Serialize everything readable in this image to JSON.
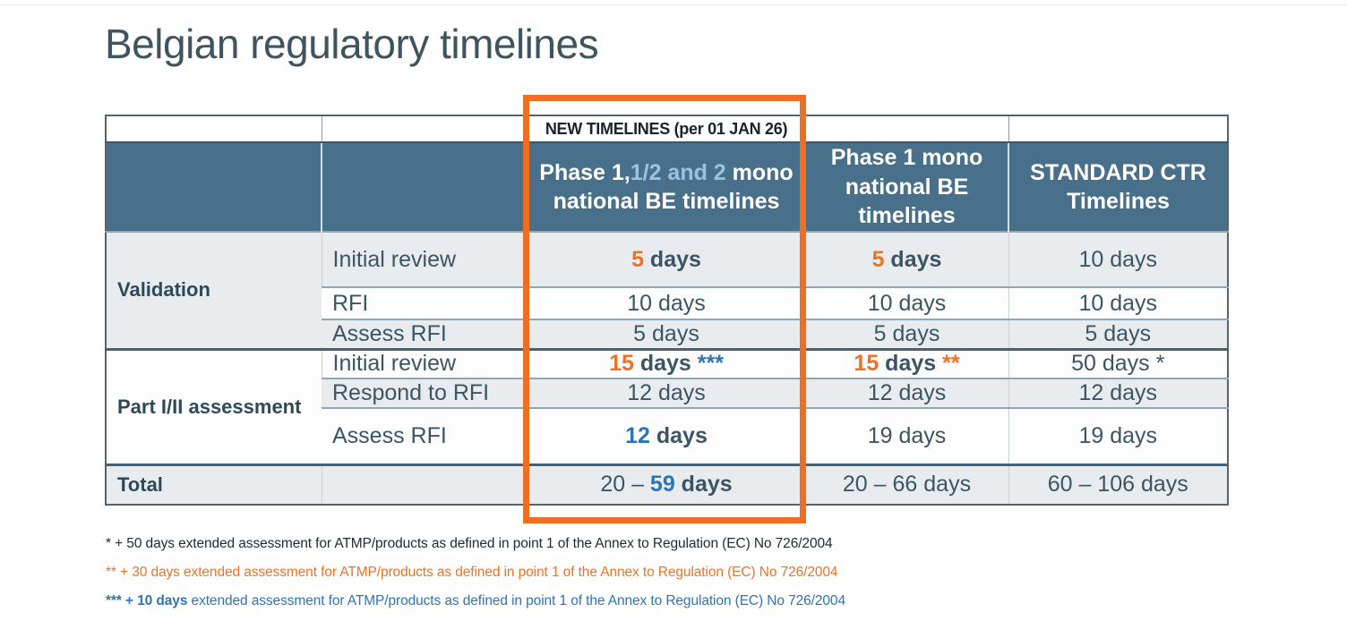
{
  "title": "Belgian regulatory timelines",
  "colors": {
    "orange": "#ED7224",
    "blue": "#2E74B6",
    "dark": "#3C5564",
    "ink": "#1C2A32",
    "lightblue": "#9CC2DD",
    "white": "#FFFFFF",
    "header_bg": "#49708A",
    "alt_row_bg": "#E9ECEF",
    "title_color": "#3E545F",
    "highlight": "#F06E23"
  },
  "table": {
    "banner": "NEW TIMELINES (per 01 JAN 26)",
    "headers": {
      "new_segments": [
        {
          "text": "Phase 1,",
          "color": "white",
          "bold": true
        },
        {
          "text": "1/2 and 2",
          "color": "lightblue",
          "bold": true
        },
        {
          "text": " mono national BE timelines",
          "color": "white",
          "bold": true
        }
      ],
      "phase1_mono": "Phase 1 mono national BE timelines",
      "standard": "STANDARD CTR Timelines"
    },
    "sections": [
      {
        "label": "Validation",
        "rows": [
          {
            "step": "Initial review",
            "new": [
              {
                "text": "5",
                "color": "orange",
                "bold": true
              },
              {
                "text": " days",
                "bold": true
              }
            ],
            "phase1": [
              {
                "text": "5",
                "color": "orange",
                "bold": true
              },
              {
                "text": " days",
                "bold": true
              }
            ],
            "standard": [
              {
                "text": "10 days"
              }
            ]
          },
          {
            "step": "RFI",
            "new": [
              {
                "text": "10 days"
              }
            ],
            "phase1": [
              {
                "text": "10 days"
              }
            ],
            "standard": [
              {
                "text": "10 days"
              }
            ]
          },
          {
            "step": "Assess RFI",
            "new": [
              {
                "text": "5 days"
              }
            ],
            "phase1": [
              {
                "text": "5 days"
              }
            ],
            "standard": [
              {
                "text": "5 days"
              }
            ]
          }
        ]
      },
      {
        "label": "Part I/II assessment",
        "rows": [
          {
            "step": "Initial review",
            "new": [
              {
                "text": "15",
                "color": "orange",
                "bold": true
              },
              {
                "text": " days ",
                "bold": true
              },
              {
                "text": "***",
                "color": "blue",
                "bold": true
              }
            ],
            "phase1": [
              {
                "text": "15",
                "color": "orange",
                "bold": true
              },
              {
                "text": " days ",
                "bold": true
              },
              {
                "text": "**",
                "color": "orange",
                "bold": true
              }
            ],
            "standard": [
              {
                "text": "50 days *"
              }
            ]
          },
          {
            "step": "Respond to RFI",
            "new": [
              {
                "text": "12 days"
              }
            ],
            "phase1": [
              {
                "text": "12 days"
              }
            ],
            "standard": [
              {
                "text": "12 days"
              }
            ]
          },
          {
            "step": "Assess RFI",
            "new": [
              {
                "text": "12",
                "color": "blue",
                "bold": true
              },
              {
                "text": " days",
                "bold": true
              }
            ],
            "phase1": [
              {
                "text": "19 days"
              }
            ],
            "standard": [
              {
                "text": "19 days"
              }
            ]
          }
        ]
      }
    ],
    "total": {
      "label": "Total",
      "new": [
        {
          "text": "20 – "
        },
        {
          "text": "59",
          "color": "blue",
          "bold": true
        },
        {
          "text": " days",
          "bold": true
        }
      ],
      "phase1": [
        {
          "text": "20 – 66 days"
        }
      ],
      "standard": [
        {
          "text": "60 – 106 days"
        }
      ]
    }
  },
  "footnotes": [
    {
      "segments": [
        {
          "text": "* + 50 days extended assessment for ATMP/products as defined in point 1 of the Annex to Regulation (EC) No 726/2004",
          "color": "ink"
        }
      ]
    },
    {
      "segments": [
        {
          "text": "** + 30 days extended assessment for ATMP/products as defined in point 1 of the Annex to Regulation (EC) No 726/2004",
          "color": "orange"
        }
      ]
    },
    {
      "segments": [
        {
          "text": "*** + 10 days",
          "color": "blue",
          "bold": true
        },
        {
          "text": " extended assessment for ATMP/products as defined in point 1 of the Annex to Regulation (EC) No 726/2004",
          "color": "blue"
        }
      ]
    }
  ]
}
